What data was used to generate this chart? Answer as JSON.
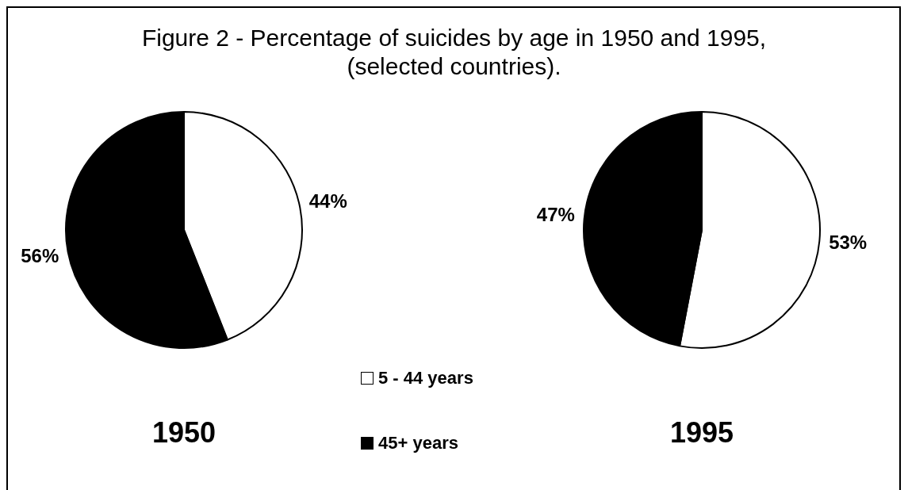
{
  "chart_data": [
    {
      "type": "pie",
      "title": "Figure 2 - Percentage of suicides by age in 1950 and 1995, (selected countries).",
      "xlabel": "1950",
      "categories": [
        "5 - 44 years",
        "45+ years"
      ],
      "values": [
        44,
        56
      ],
      "colors": [
        "#ffffff",
        "#000000"
      ],
      "value_labels": [
        "44%",
        "56%"
      ],
      "legend": "bottom right"
    },
    {
      "type": "pie",
      "xlabel": "1995",
      "categories": [
        null,
        null
      ],
      "values": [
        53,
        47
      ],
      "colors": [
        "#ffffff",
        "#000000"
      ],
      "value_labels": [
        "53%",
        "47%"
      ]
    }
  ]
}
